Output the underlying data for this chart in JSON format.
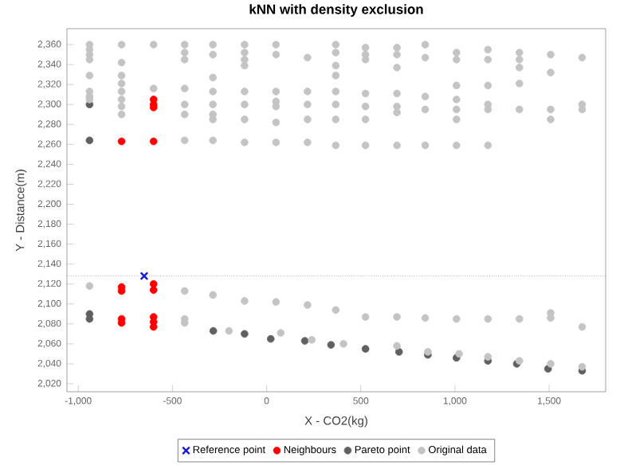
{
  "chart_data": {
    "type": "scatter",
    "title": "kNN with density exclusion",
    "xlabel": "X - CO2(kg)",
    "ylabel": "Y - Distance(m)",
    "xlim": [
      -1060,
      1800
    ],
    "ylim": [
      2012,
      2376
    ],
    "xticks": [
      {
        "value": -1000,
        "label": "-1,000"
      },
      {
        "value": -500,
        "label": "-500"
      },
      {
        "value": 0,
        "label": "0"
      },
      {
        "value": 500,
        "label": "500"
      },
      {
        "value": 1000,
        "label": "1,000"
      },
      {
        "value": 1500,
        "label": "1,500"
      }
    ],
    "yticks": [
      {
        "value": 2020,
        "label": "2,020"
      },
      {
        "value": 2040,
        "label": "2,040"
      },
      {
        "value": 2060,
        "label": "2,060"
      },
      {
        "value": 2080,
        "label": "2,080"
      },
      {
        "value": 2100,
        "label": "2,100"
      },
      {
        "value": 2120,
        "label": "2,120"
      },
      {
        "value": 2140,
        "label": "2,140"
      },
      {
        "value": 2160,
        "label": "2,160"
      },
      {
        "value": 2180,
        "label": "2,180"
      },
      {
        "value": 2200,
        "label": "2,200"
      },
      {
        "value": 2220,
        "label": "2,220"
      },
      {
        "value": 2240,
        "label": "2,240"
      },
      {
        "value": 2260,
        "label": "2,260"
      },
      {
        "value": 2280,
        "label": "2,280"
      },
      {
        "value": 2300,
        "label": "2,300"
      },
      {
        "value": 2320,
        "label": "2,320"
      },
      {
        "value": 2340,
        "label": "2,340"
      },
      {
        "value": 2360,
        "label": "2,360"
      }
    ],
    "grid": false,
    "legend": "bottom",
    "ref_lines": [
      {
        "axis": "y",
        "value": 2128,
        "color": "#8888dd",
        "line_style": "dotted"
      }
    ],
    "series": [
      {
        "name": "Reference point",
        "color": "#1a1ad0",
        "marker": "cross",
        "x": [
          -650
        ],
        "values": [
          2128
        ]
      },
      {
        "name": "Neighbours",
        "color": "#ff0000",
        "marker": "circle",
        "x": [
          -770,
          -600,
          -600,
          -600,
          -600,
          -770,
          -770,
          -770,
          -770,
          -600,
          -600,
          -600,
          -600,
          -600
        ],
        "values": [
          2263,
          2305,
          2300,
          2297,
          2263,
          2117,
          2113,
          2085,
          2081,
          2120,
          2114,
          2087,
          2082,
          2077
        ]
      },
      {
        "name": "Pareto point",
        "color": "#606060",
        "marker": "circle",
        "x": [
          -940,
          -940,
          -940,
          -940,
          -283,
          -117,
          22,
          203,
          342,
          525,
          703,
          856,
          1008,
          1175,
          1328,
          1494,
          1675
        ],
        "values": [
          2300,
          2264,
          2090,
          2085,
          2073,
          2070,
          2065,
          2063,
          2059,
          2055,
          2052,
          2049,
          2046,
          2043,
          2040,
          2035,
          2033
        ]
      },
      {
        "name": "Original data",
        "color": "#c4c4c4",
        "marker": "circle",
        "x": [
          -940,
          -940,
          -940,
          -940,
          -940,
          -940,
          -940,
          -940,
          -770,
          -770,
          -770,
          -770,
          -770,
          -770,
          -770,
          -770,
          -600,
          -600,
          -435,
          -435,
          -435,
          -435,
          -435,
          -435,
          -435,
          -285,
          -285,
          -285,
          -285,
          -285,
          -285,
          -285,
          -285,
          -117,
          -117,
          -117,
          -117,
          -117,
          -117,
          -117,
          -117,
          50,
          50,
          50,
          50,
          50,
          50,
          50,
          217,
          217,
          217,
          217,
          217,
          367,
          367,
          367,
          367,
          367,
          367,
          367,
          367,
          525,
          525,
          525,
          525,
          525,
          525,
          525,
          692,
          692,
          692,
          692,
          692,
          692,
          692,
          842,
          842,
          842,
          842,
          842,
          1008,
          1008,
          1008,
          1008,
          1008,
          1008,
          1008,
          1175,
          1175,
          1175,
          1175,
          1175,
          1175,
          1342,
          1342,
          1342,
          1342,
          1342,
          1508,
          1508,
          1508,
          1508,
          1675,
          1675,
          1675,
          -940,
          -435,
          -285,
          -117,
          50,
          217,
          367,
          525,
          692,
          842,
          1008,
          1175,
          1342,
          1508,
          1508,
          1675,
          -435,
          -435,
          -200,
          75,
          240,
          408,
          692,
          856,
          1022,
          1175,
          1342,
          1508,
          1675
        ],
        "values": [
          2360,
          2355,
          2350,
          2345,
          2329,
          2313,
          2308,
          2305,
          2360,
          2342,
          2329,
          2321,
          2313,
          2305,
          2298,
          2290,
          2360,
          2316,
          2360,
          2352,
          2345,
          2316,
          2300,
          2290,
          2264,
          2360,
          2350,
          2327,
          2313,
          2300,
          2290,
          2285,
          2264,
          2360,
          2352,
          2345,
          2339,
          2313,
          2300,
          2285,
          2262,
          2360,
          2350,
          2313,
          2303,
          2298,
          2282,
          2262,
          2347,
          2313,
          2300,
          2285,
          2262,
          2360,
          2352,
          2339,
          2329,
          2313,
          2300,
          2285,
          2259,
          2357,
          2350,
          2345,
          2311,
          2298,
          2285,
          2259,
          2357,
          2350,
          2337,
          2311,
          2298,
          2292,
          2259,
          2360,
          2347,
          2308,
          2295,
          2259,
          2352,
          2345,
          2319,
          2305,
          2295,
          2285,
          2259,
          2355,
          2345,
          2319,
          2300,
          2295,
          2259,
          2352,
          2345,
          2337,
          2321,
          2295,
          2350,
          2332,
          2295,
          2285,
          2347,
          2300,
          2295,
          2118,
          2113,
          2109,
          2103,
          2102,
          2099,
          2094,
          2087,
          2087,
          2086,
          2085,
          2085,
          2085,
          2091,
          2086,
          2077,
          2085,
          2081,
          2073,
          2071,
          2064,
          2060,
          2058,
          2052,
          2050,
          2047,
          2043,
          2040,
          2037
        ]
      }
    ]
  }
}
